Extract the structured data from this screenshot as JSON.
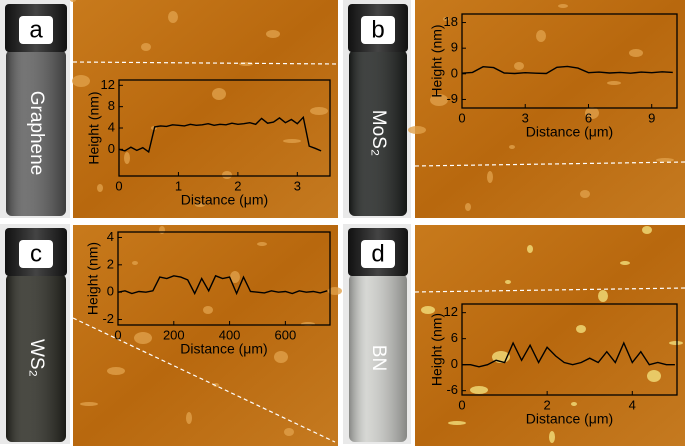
{
  "chart_data": [
    {
      "type": "line",
      "panel": "a",
      "sample": "Graphene",
      "x_label": "Distance (μm)",
      "y_label": "Height (nm)",
      "color": "#000000",
      "x": [
        0,
        0.1,
        0.2,
        0.3,
        0.4,
        0.5,
        0.6,
        0.7,
        0.8,
        0.9,
        1.0,
        1.1,
        1.2,
        1.3,
        1.4,
        1.5,
        1.6,
        1.7,
        1.8,
        1.9,
        2.0,
        2.1,
        2.2,
        2.3,
        2.4,
        2.5,
        2.6,
        2.7,
        2.8,
        2.9,
        3.0,
        3.1,
        3.2,
        3.3,
        3.4
      ],
      "values": [
        0,
        -0.3,
        0.4,
        -0.2,
        0.3,
        -0.5,
        4.2,
        4.4,
        4.3,
        4.6,
        4.5,
        4.4,
        4.7,
        4.5,
        4.6,
        4.8,
        4.5,
        4.7,
        4.6,
        4.9,
        4.7,
        4.8,
        5.0,
        4.7,
        5.8,
        4.9,
        5.1,
        5.9,
        5.0,
        5.6,
        4.8,
        6.0,
        0.6,
        0.2,
        -0.3
      ],
      "xlim": [
        0,
        3.55
      ],
      "ylim": [
        -5,
        13
      ],
      "xticks": [
        0,
        1,
        2,
        3
      ],
      "yticks": [
        0,
        4,
        8,
        12
      ]
    },
    {
      "type": "line",
      "panel": "b",
      "sample": "MoS₂",
      "x_label": "Distance (μm)",
      "y_label": "Height (nm)",
      "color": "#000000",
      "x": [
        0,
        0.5,
        1,
        1.5,
        2,
        2.5,
        3,
        3.5,
        4,
        4.5,
        5,
        5.5,
        6,
        6.5,
        7,
        7.5,
        8,
        8.5,
        9,
        9.5,
        10
      ],
      "values": [
        0.2,
        0.5,
        2.5,
        2.2,
        0.3,
        0.1,
        0.4,
        0.2,
        0.1,
        2.3,
        2.6,
        2.0,
        0.4,
        0.6,
        0.3,
        0.5,
        0.2,
        0.6,
        0.4,
        0.7,
        0.5
      ],
      "xlim": [
        0,
        10.2
      ],
      "ylim": [
        -12,
        21
      ],
      "xticks": [
        0,
        3,
        6,
        9
      ],
      "yticks": [
        18,
        9,
        0,
        -9
      ]
    },
    {
      "type": "line",
      "panel": "c",
      "sample": "WS₂",
      "x_label": "Distance (μm)",
      "y_label": "Height (nm)",
      "color": "#000000",
      "x": [
        0,
        25,
        50,
        75,
        100,
        125,
        150,
        175,
        200,
        225,
        250,
        275,
        300,
        325,
        350,
        375,
        400,
        425,
        450,
        475,
        500,
        525,
        550,
        575,
        600,
        625,
        650,
        675,
        700,
        725,
        750
      ],
      "values": [
        0,
        0.1,
        -0.1,
        0.05,
        0,
        0.1,
        1.1,
        1.0,
        1.2,
        1.1,
        0.9,
        -0.1,
        1.0,
        0.1,
        1.2,
        1.0,
        1.1,
        -0.1,
        1.1,
        0.05,
        0,
        -0.05,
        0.1,
        0,
        0.05,
        -0.1,
        0.1,
        0,
        0.05,
        -0.05,
        0.1
      ],
      "xlim": [
        0,
        760
      ],
      "ylim": [
        -2.4,
        4.4
      ],
      "xticks": [
        0,
        200,
        400,
        600
      ],
      "yticks": [
        4,
        2,
        0,
        -2
      ]
    },
    {
      "type": "line",
      "panel": "d",
      "sample": "BN",
      "x_label": "Distance (μm)",
      "y_label": "Height (nm)",
      "color": "#000000",
      "x": [
        0,
        0.2,
        0.4,
        0.6,
        0.8,
        1.0,
        1.2,
        1.4,
        1.6,
        1.8,
        2.0,
        2.2,
        2.4,
        2.6,
        2.8,
        3.0,
        3.2,
        3.4,
        3.6,
        3.8,
        4.0,
        4.2,
        4.4,
        4.6,
        4.8,
        5.0
      ],
      "values": [
        0,
        0,
        -0.5,
        0,
        1,
        0.5,
        5,
        1,
        4.5,
        0.5,
        4,
        2,
        0.5,
        0,
        0.5,
        1.5,
        0.5,
        3,
        0.5,
        5,
        0.5,
        3,
        0,
        0.5,
        0,
        0
      ],
      "xlim": [
        0,
        5.05
      ],
      "ylim": [
        -7,
        14
      ],
      "xticks": [
        0,
        2,
        4
      ],
      "yticks": [
        12,
        6,
        0,
        -6
      ]
    }
  ]
}
